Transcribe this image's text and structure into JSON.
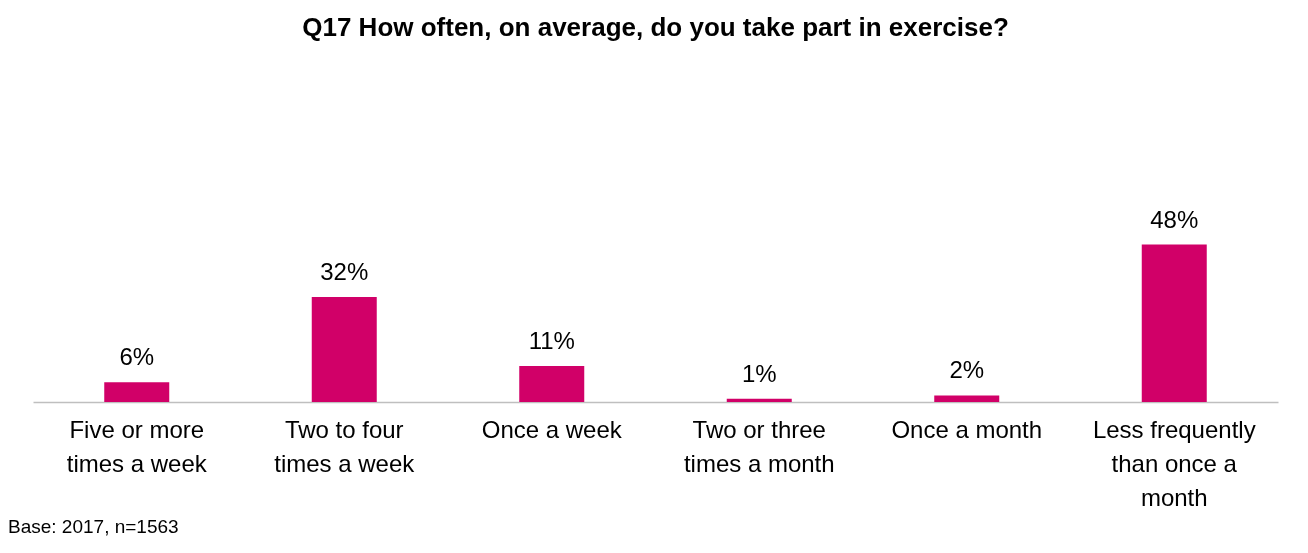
{
  "chart_data": {
    "type": "bar",
    "title": "Q17 How often, on average, do you take part in exercise?",
    "categories": [
      "Five or more times a week",
      "Two to four times a week",
      "Once a week",
      "Two or three times a month",
      "Once a month",
      "Less frequently than once a month"
    ],
    "values": [
      6,
      32,
      11,
      1,
      2,
      48
    ],
    "value_labels": [
      "6%",
      "32%",
      "11%",
      "1%",
      "2%",
      "48%"
    ],
    "color": "#d10068",
    "grid": false,
    "annotations": [
      "Base: 2017, n=1563"
    ]
  }
}
